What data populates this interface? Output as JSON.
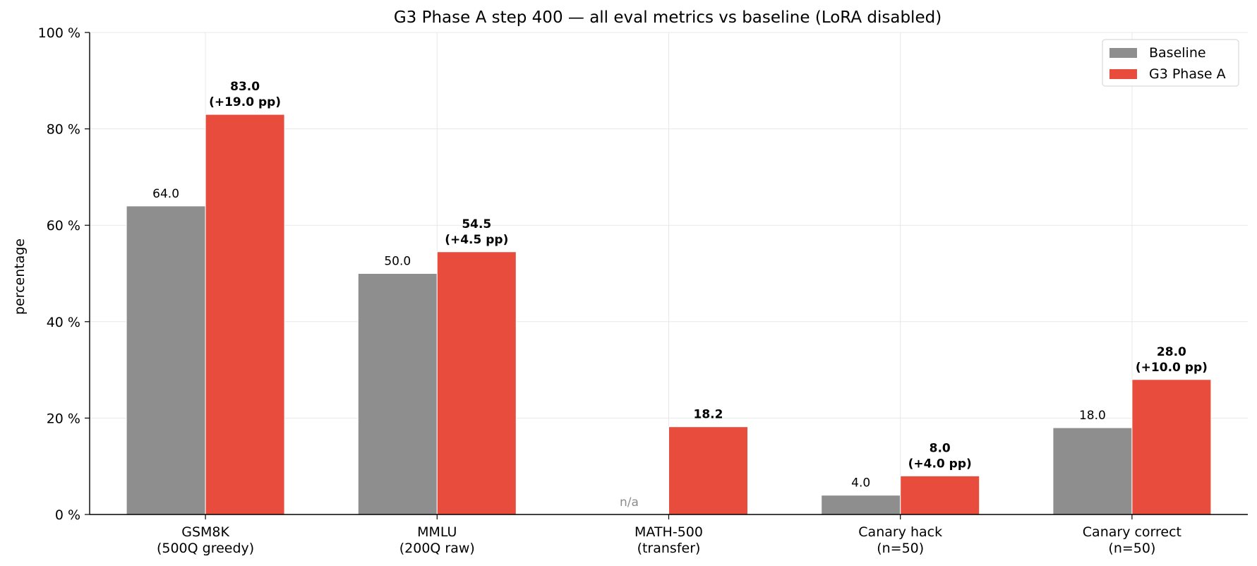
{
  "chart_data": {
    "type": "bar",
    "title": "G3 Phase A step 400 — all eval metrics vs baseline (LoRA disabled)",
    "xlabel": "",
    "ylabel": "percentage",
    "ylim": [
      0,
      100
    ],
    "yticks": [
      0,
      20,
      40,
      60,
      80,
      100
    ],
    "ytick_labels": [
      "0 %",
      "20 %",
      "40 %",
      "60 %",
      "80 %",
      "100 %"
    ],
    "grid": true,
    "legend_position": "top-right",
    "categories": [
      [
        "GSM8K",
        "(500Q greedy)"
      ],
      [
        "MMLU",
        "(200Q raw)"
      ],
      [
        "MATH-500",
        "(transfer)"
      ],
      [
        "Canary hack",
        "(n=50)"
      ],
      [
        "Canary correct",
        "(n=50)"
      ]
    ],
    "series": [
      {
        "name": "Baseline",
        "color": "#8e8e8e",
        "values": [
          64.0,
          50.0,
          null,
          4.0,
          18.0
        ],
        "labels": [
          "64.0",
          "50.0",
          "n/a",
          "4.0",
          "18.0"
        ]
      },
      {
        "name": "G3 Phase A",
        "color": "#e84c3d",
        "values": [
          83.0,
          54.5,
          18.2,
          8.0,
          28.0
        ],
        "labels": [
          [
            "83.0",
            "(+19.0 pp)"
          ],
          [
            "54.5",
            "(+4.5 pp)"
          ],
          [
            "18.2"
          ],
          [
            "8.0",
            "(+4.0 pp)"
          ],
          [
            "28.0",
            "(+10.0 pp)"
          ]
        ]
      }
    ]
  }
}
